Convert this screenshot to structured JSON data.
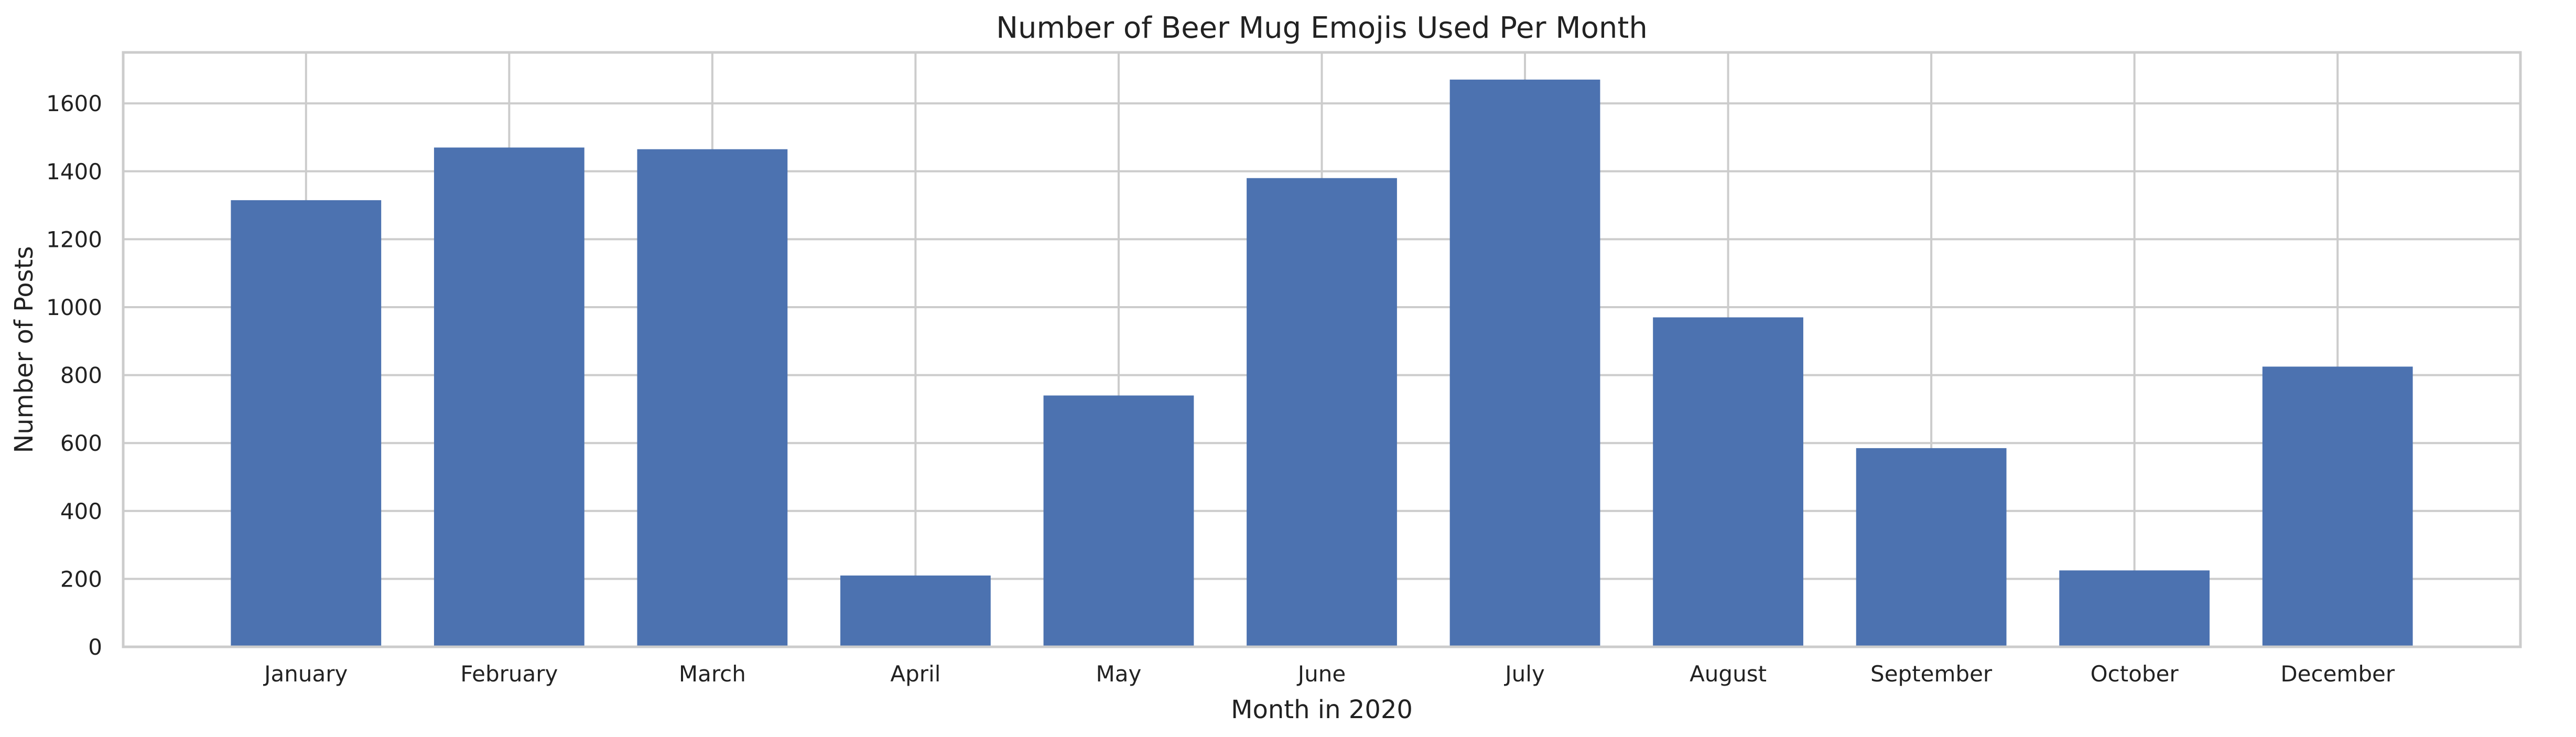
{
  "chart_data": {
    "type": "bar",
    "title": "Number of Beer Mug Emojis Used Per Month",
    "xlabel": "Month in 2020",
    "ylabel": "Number of Posts",
    "categories": [
      "January",
      "February",
      "March",
      "April",
      "May",
      "June",
      "July",
      "August",
      "September",
      "October",
      "December"
    ],
    "values": [
      1315,
      1470,
      1465,
      210,
      740,
      1380,
      1670,
      970,
      585,
      225,
      825
    ],
    "ylim": [
      0,
      1750
    ],
    "yticks": [
      0,
      200,
      400,
      600,
      800,
      1000,
      1200,
      1400,
      1600
    ],
    "grid": true,
    "bar_color": "#4c72b0",
    "grid_color": "#cccccc"
  }
}
